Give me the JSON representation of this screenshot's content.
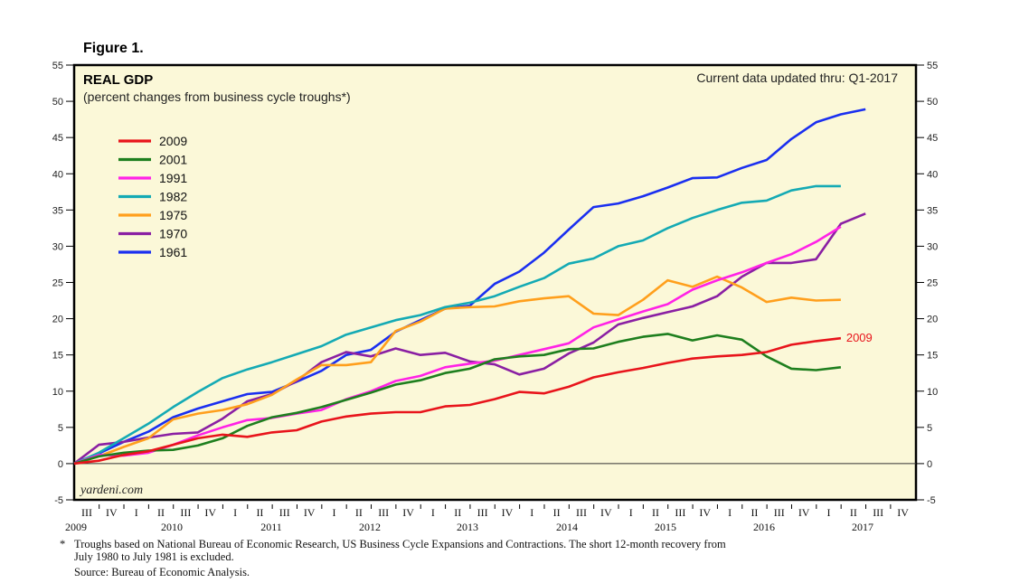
{
  "figure_label": "Figure 1.",
  "chart_data": {
    "type": "line",
    "title": "REAL GDP",
    "subtitle": "(percent changes from business cycle troughs*)",
    "update_note": "Current data updated thru: Q1-2017",
    "watermark": "yardeni.com",
    "ylim": [
      -5,
      55
    ],
    "yticks": [
      -5,
      0,
      5,
      10,
      15,
      20,
      25,
      30,
      35,
      40,
      45,
      50,
      55
    ],
    "grid": false,
    "legend_position": "top-left",
    "quarter_labels": [
      "III",
      "IV",
      "I",
      "II",
      "III",
      "IV",
      "I",
      "II",
      "III",
      "IV",
      "I",
      "II",
      "III",
      "IV",
      "I",
      "II",
      "III",
      "IV",
      "I",
      "II",
      "III",
      "IV",
      "I",
      "II",
      "III",
      "IV",
      "I",
      "II",
      "III",
      "IV",
      "I",
      "II",
      "III",
      "IV"
    ],
    "year_labels": [
      "2009",
      "2010",
      "2011",
      "2012",
      "2013",
      "2014",
      "2015",
      "2016",
      "2017"
    ],
    "end_label": {
      "text": "2009",
      "series": "2009"
    },
    "series": [
      {
        "name": "2009",
        "color": "#e8141b",
        "values": [
          0,
          0.4,
          1.2,
          1.7,
          2.6,
          3.5,
          4.0,
          3.7,
          4.3,
          4.6,
          5.8,
          6.5,
          6.9,
          7.1,
          7.1,
          7.9,
          8.1,
          8.9,
          9.9,
          9.7,
          10.6,
          11.9,
          12.6,
          13.2,
          13.9,
          14.5,
          14.8,
          15.0,
          15.4,
          16.4,
          16.9,
          17.3
        ]
      },
      {
        "name": "2001",
        "color": "#1e7f1e",
        "values": [
          0,
          1.0,
          1.5,
          1.8,
          1.9,
          2.5,
          3.5,
          5.2,
          6.4,
          7.0,
          7.8,
          8.8,
          9.8,
          10.9,
          11.5,
          12.5,
          13.1,
          14.4,
          14.8,
          15.0,
          15.8,
          15.9,
          16.8,
          17.5,
          17.9,
          17.0,
          17.7,
          17.1,
          14.8,
          13.1,
          12.9,
          13.3
        ]
      },
      {
        "name": "1991",
        "color": "#ff22e6",
        "values": [
          0,
          1.2,
          1.1,
          1.5,
          2.6,
          3.9,
          5.0,
          6.0,
          6.3,
          6.9,
          7.4,
          8.9,
          10.0,
          11.4,
          12.1,
          13.3,
          13.8,
          14.2,
          15.0,
          15.8,
          16.6,
          18.8,
          19.9,
          21.0,
          22.0,
          24.0,
          25.3,
          26.4,
          27.7,
          28.9,
          30.6,
          32.7
        ]
      },
      {
        "name": "1982",
        "color": "#14aab4",
        "values": [
          0,
          1.5,
          3.5,
          5.5,
          7.8,
          9.9,
          11.8,
          13.0,
          14.0,
          15.1,
          16.2,
          17.8,
          18.8,
          19.8,
          20.5,
          21.6,
          22.2,
          23.1,
          24.4,
          25.6,
          27.6,
          28.3,
          30.0,
          30.8,
          32.5,
          33.9,
          35.0,
          36.0,
          36.3,
          37.7,
          38.3,
          38.3
        ]
      },
      {
        "name": "1975",
        "color": "#ff9f1c",
        "values": [
          0,
          1.0,
          2.3,
          3.5,
          6.1,
          6.9,
          7.4,
          8.2,
          9.5,
          11.6,
          13.6,
          13.6,
          14.0,
          18.3,
          19.6,
          21.4,
          21.6,
          21.7,
          22.4,
          22.8,
          23.1,
          20.7,
          20.5,
          22.6,
          25.3,
          24.4,
          25.8,
          24.3,
          22.3,
          22.9,
          22.5,
          22.6
        ]
      },
      {
        "name": "1970",
        "color": "#8a1fa3",
        "values": [
          0,
          2.6,
          3.0,
          3.6,
          4.1,
          4.3,
          6.2,
          8.6,
          9.6,
          11.4,
          14.0,
          15.4,
          14.8,
          15.9,
          15.0,
          15.3,
          14.1,
          13.7,
          12.3,
          13.1,
          15.2,
          16.7,
          19.2,
          20.1,
          20.9,
          21.7,
          23.1,
          25.8,
          27.7,
          27.7,
          28.2,
          33.1,
          34.5
        ]
      },
      {
        "name": "1961",
        "color": "#1a2ff0",
        "values": [
          0,
          1.4,
          3.0,
          4.4,
          6.4,
          7.6,
          8.6,
          9.6,
          9.9,
          11.3,
          12.8,
          15.0,
          15.7,
          18.2,
          19.8,
          21.4,
          21.8,
          24.8,
          26.5,
          29.1,
          32.3,
          35.4,
          35.9,
          36.9,
          38.1,
          39.4,
          39.5,
          40.8,
          41.9,
          44.8,
          47.1,
          48.2,
          48.9
        ]
      }
    ]
  },
  "footnote": {
    "star": "*",
    "line1": "Troughs based on National Bureau of Economic Research, US Business Cycle Expansions and Contractions. The short 12-month recovery from",
    "line2": "July 1980 to July 1981 is excluded.",
    "line3": "Source: Bureau of Economic Analysis."
  }
}
